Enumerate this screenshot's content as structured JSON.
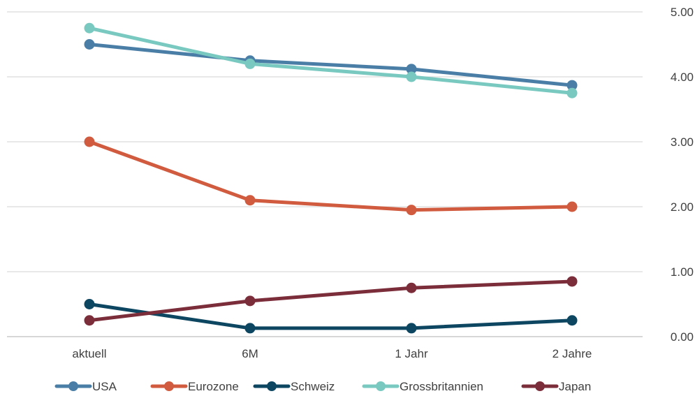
{
  "chart_data": {
    "type": "line",
    "title": "",
    "xlabel": "",
    "ylabel": "",
    "categories": [
      "aktuell",
      "6M",
      "1 Jahr",
      "2 Jahre"
    ],
    "ylim": [
      0,
      5
    ],
    "yticks": [
      "0.00",
      "1.00",
      "2.00",
      "3.00",
      "4.00",
      "5.00"
    ],
    "y_axis_side": "right",
    "grid": true,
    "legend_position": "bottom",
    "series": [
      {
        "name": "USA",
        "color": "#4a7ea6",
        "values": [
          4.5,
          4.25,
          4.12,
          3.87
        ]
      },
      {
        "name": "Eurozone",
        "color": "#d05b3e",
        "values": [
          3.0,
          2.1,
          1.95,
          2.0
        ]
      },
      {
        "name": "Schweiz",
        "color": "#0d4661",
        "values": [
          0.5,
          0.13,
          0.13,
          0.25
        ]
      },
      {
        "name": "Grossbritannien",
        "color": "#79c9c0",
        "values": [
          4.75,
          4.2,
          4.0,
          3.75
        ]
      },
      {
        "name": "Japan",
        "color": "#7b2d3a",
        "values": [
          0.25,
          0.55,
          0.75,
          0.85
        ]
      }
    ]
  }
}
